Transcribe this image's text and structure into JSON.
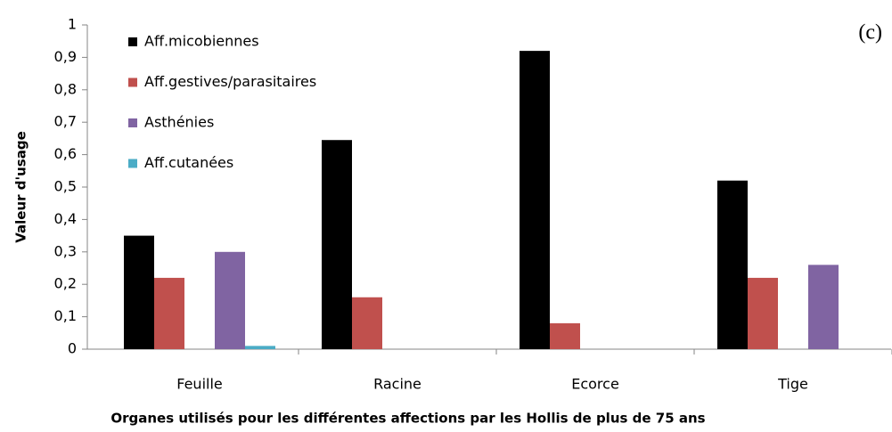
{
  "chart_data": {
    "type": "bar",
    "annotation": "(c)",
    "y_label": "Valeur d'usage",
    "x_label": "Organes utilisés pour les différentes affections  par les Hollis de plus de 75 ans",
    "categories": [
      "Feuille",
      "Racine",
      "Ecorce",
      "Tige"
    ],
    "series": [
      {
        "name": "Aff.micobiennes",
        "color": "#000000",
        "values": [
          0.35,
          0.645,
          0.92,
          0.52
        ]
      },
      {
        "name": "Aff.gestives/parasitaires",
        "color": "#c0504d",
        "values": [
          0.22,
          0.16,
          0.08,
          0.22
        ]
      },
      {
        "name": "Asthénies",
        "color": "#8064a2",
        "values": [
          0.3,
          0,
          0,
          0.26
        ]
      },
      {
        "name": "Aff.cutanées",
        "color": "#4bacc6",
        "values": [
          0.01,
          0,
          0,
          0
        ]
      }
    ],
    "ylim": [
      0,
      1
    ],
    "yticks": [
      0,
      {
        "value": 0.1,
        "label": "0,1"
      },
      {
        "value": 0.2,
        "label": "0,2"
      },
      {
        "value": 0.3,
        "label": "0,3"
      },
      {
        "value": 0.4,
        "label": "0,4"
      },
      {
        "value": 0.5,
        "label": "0,5"
      },
      {
        "value": 0.6,
        "label": "0,6"
      },
      {
        "value": 0.7,
        "label": "0,7"
      },
      {
        "value": 0.8,
        "label": "0,8"
      },
      {
        "value": 0.9,
        "label": "0,9"
      },
      1
    ],
    "grid": false,
    "legend": "top-left"
  }
}
